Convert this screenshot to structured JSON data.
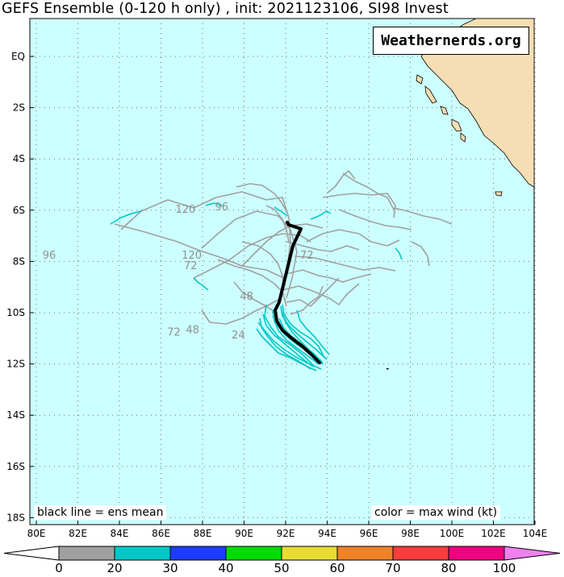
{
  "title": "GEFS Ensemble (0-120 h only) , init: 2021123106, SI98 Invest",
  "watermark": "Weathernerds.org",
  "legend": {
    "left": "black line = ens mean",
    "right": "color = max wind (kt)"
  },
  "axes": {
    "x_ticks": [
      "80E",
      "82E",
      "84E",
      "86E",
      "88E",
      "90E",
      "92E",
      "94E",
      "96E",
      "98E",
      "100E",
      "102E",
      "104E"
    ],
    "y_ticks": [
      "EQ",
      "2S",
      "4S",
      "6S",
      "8S",
      "10S",
      "12S",
      "14S",
      "16S",
      "18S"
    ]
  },
  "colorbar": {
    "labels": [
      "0",
      "20",
      "30",
      "40",
      "50",
      "60",
      "70",
      "80",
      "100"
    ],
    "colors": [
      "#a0a0a0",
      "#00c8c8",
      "#1e3cff",
      "#00dc00",
      "#e6dc32",
      "#f08228",
      "#fa3c3c",
      "#f00082",
      "#f080f0"
    ]
  },
  "colors": {
    "ocean": "#ccffff",
    "land": "#f5deb3",
    "mean_track": "#000000",
    "weak_track": "#a0a0a0",
    "ts_track": "#00c8c8"
  },
  "hour_labels": [
    {
      "text": "120",
      "lon": 86.7,
      "lat": -6.1
    },
    {
      "text": "96",
      "lon": 88.6,
      "lat": -6.0
    },
    {
      "text": "96",
      "lon": 80.3,
      "lat": -7.9
    },
    {
      "text": "120",
      "lon": 87.0,
      "lat": -7.9
    },
    {
      "text": "72",
      "lon": 87.1,
      "lat": -8.3
    },
    {
      "text": "72",
      "lon": 92.7,
      "lat": -7.9
    },
    {
      "text": "48",
      "lon": 89.8,
      "lat": -9.5
    },
    {
      "text": "72",
      "lon": 86.3,
      "lat": -10.9
    },
    {
      "text": "48",
      "lon": 87.2,
      "lat": -10.8
    },
    {
      "text": "24",
      "lon": 89.4,
      "lat": -11.0
    }
  ]
}
